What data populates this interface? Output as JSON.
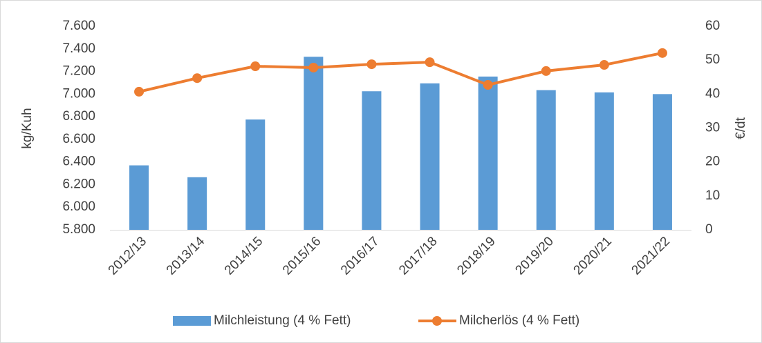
{
  "chart_data": {
    "type": "bar_line",
    "categories": [
      "2012/13",
      "2013/14",
      "2014/15",
      "2015/16",
      "2016/17",
      "2017/18",
      "2018/19",
      "2019/20",
      "2020/21",
      "2021/22"
    ],
    "series": [
      {
        "name": "Milchleistung (4 % Fett)",
        "color": "#5b9bd5",
        "type": "bar",
        "values": [
          6370,
          6265,
          6775,
          7330,
          7025,
          7095,
          7155,
          7035,
          7015,
          7000
        ]
      },
      {
        "name": "Milcherlös (4 % Fett)",
        "color": "#ed7d31",
        "type": "line",
        "axis": "y2",
        "values": [
          40.7,
          44.7,
          48.2,
          47.8,
          48.8,
          49.4,
          42.7,
          46.8,
          48.6,
          52.1
        ]
      }
    ],
    "ylabel": "kg/Kuh",
    "y2label": "€/dt",
    "ylim": [
      5800,
      7600
    ],
    "yticks": [
      {
        "value": 5800,
        "label": "5.800"
      },
      {
        "value": 6000,
        "label": "6.000"
      },
      {
        "value": 6200,
        "label": "6.200"
      },
      {
        "value": 6400,
        "label": "6.400"
      },
      {
        "value": 6600,
        "label": "6.600"
      },
      {
        "value": 6800,
        "label": "6.800"
      },
      {
        "value": 7000,
        "label": "7.000"
      },
      {
        "value": 7200,
        "label": "7.200"
      },
      {
        "value": 7400,
        "label": "7.400"
      },
      {
        "value": 7600,
        "label": "7.600"
      }
    ],
    "y2lim": [
      0,
      60
    ],
    "y2ticks": [
      0,
      10,
      20,
      30,
      40,
      50,
      60
    ],
    "legend": "bottom"
  }
}
